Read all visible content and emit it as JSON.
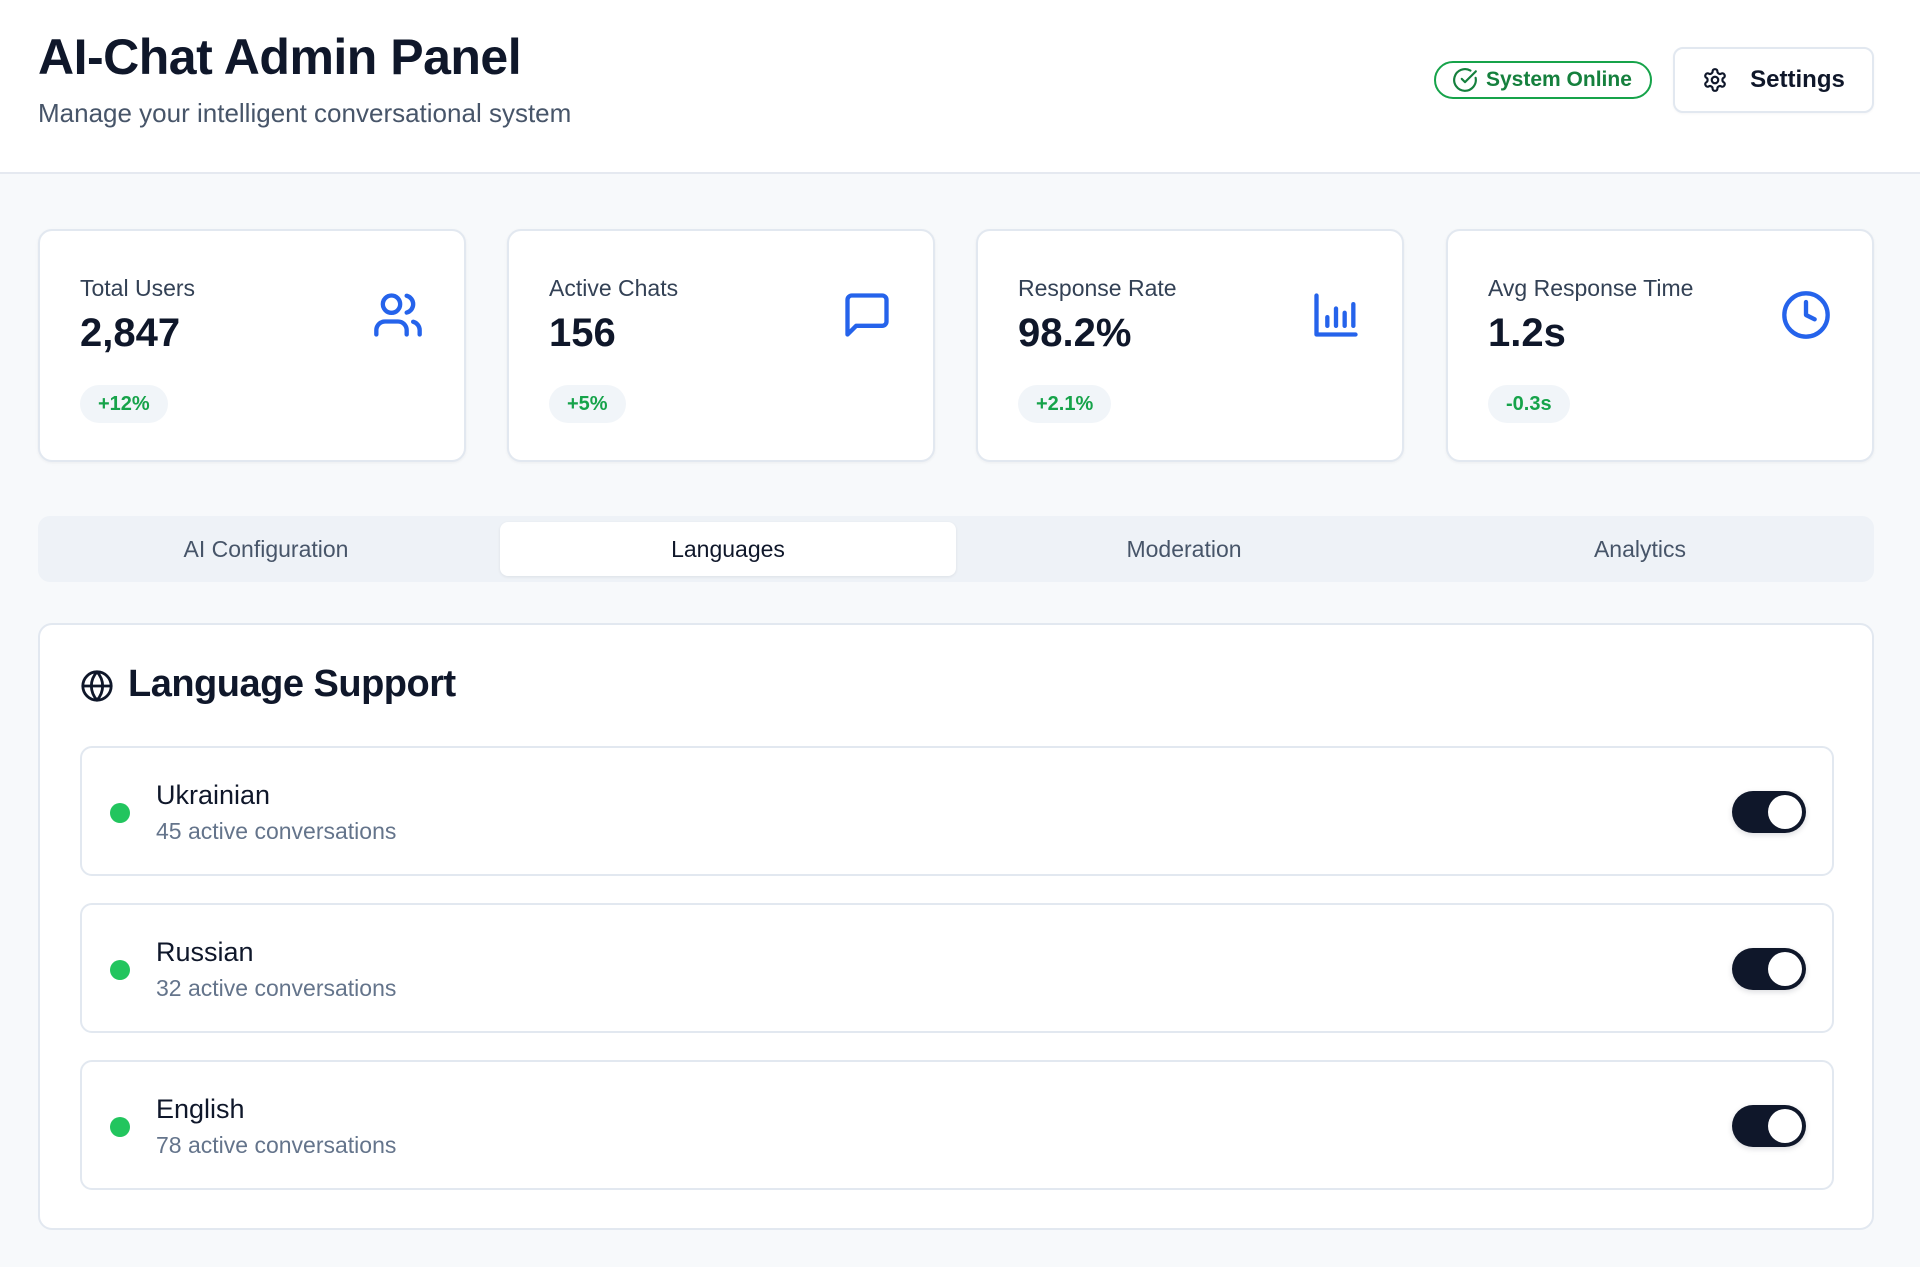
{
  "header": {
    "title": "AI-Chat Admin Panel",
    "subtitle": "Manage your intelligent conversational system",
    "status_label": "System Online",
    "settings_label": "Settings"
  },
  "stats": [
    {
      "label": "Total Users",
      "value": "2,847",
      "change": "+12%",
      "icon": "users-icon"
    },
    {
      "label": "Active Chats",
      "value": "156",
      "change": "+5%",
      "icon": "message-square-icon"
    },
    {
      "label": "Response Rate",
      "value": "98.2%",
      "change": "+2.1%",
      "icon": "bar-chart-icon"
    },
    {
      "label": "Avg Response Time",
      "value": "1.2s",
      "change": "-0.3s",
      "icon": "clock-icon"
    }
  ],
  "tabs": [
    {
      "label": "AI Configuration",
      "active": false
    },
    {
      "label": "Languages",
      "active": true
    },
    {
      "label": "Moderation",
      "active": false
    },
    {
      "label": "Analytics",
      "active": false
    }
  ],
  "languages": {
    "title": "Language Support",
    "icon": "globe-icon",
    "items": [
      {
        "name": "Ukrainian",
        "count": "45 active conversations",
        "enabled": true
      },
      {
        "name": "Russian",
        "count": "32 active conversations",
        "enabled": true
      },
      {
        "name": "English",
        "count": "78 active conversations",
        "enabled": true
      }
    ]
  },
  "colors": {
    "accent": "#2563eb",
    "success": "#16a34a",
    "status_dot": "#22c55e",
    "toggle_on": "#0f172a"
  }
}
